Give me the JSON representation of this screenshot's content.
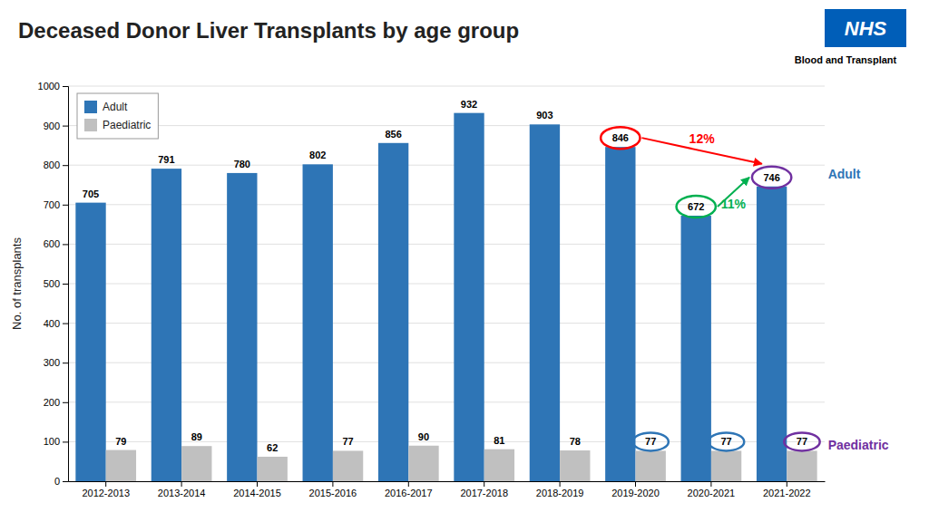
{
  "chart_data": {
    "type": "bar",
    "title": "Deceased Donor Liver Transplants by age group",
    "ylabel": "No. of transplants",
    "categories": [
      "2012-2013",
      "2013-2014",
      "2014-2015",
      "2015-2016",
      "2016-2017",
      "2017-2018",
      "2018-2019",
      "2019-2020",
      "2020-2021",
      "2021-2022"
    ],
    "series": [
      {
        "name": "Adult",
        "color": "#2E75B6",
        "values": [
          705,
          791,
          780,
          802,
          856,
          932,
          903,
          846,
          672,
          746
        ]
      },
      {
        "name": "Paediatric",
        "color": "#C0C0C0",
        "values": [
          79,
          89,
          62,
          77,
          90,
          81,
          78,
          77,
          77,
          77
        ]
      }
    ],
    "ylim": [
      0,
      1000
    ],
    "yticks": [
      0,
      100,
      200,
      300,
      400,
      500,
      600,
      700,
      800,
      900,
      1000
    ],
    "grid": true,
    "legend": "upper left",
    "data_labels": true,
    "highlights": [
      {
        "series": 0,
        "index": 7,
        "color": "#FF0000"
      },
      {
        "series": 0,
        "index": 8,
        "color": "#00B050"
      },
      {
        "series": 0,
        "index": 9,
        "color": "#7030A0"
      },
      {
        "series": 1,
        "index": 7,
        "color": "#2E75B6"
      },
      {
        "series": 1,
        "index": 8,
        "color": "#2E75B6"
      },
      {
        "series": 1,
        "index": 9,
        "color": "#7030A0"
      }
    ],
    "arrows": [
      {
        "from": 7,
        "to": 9,
        "color": "#FF0000",
        "text": "12%"
      },
      {
        "from": 8,
        "to": 9,
        "color": "#00B050",
        "text": "11%"
      }
    ],
    "end_labels": [
      {
        "series": 0,
        "color": "#2E75B6"
      },
      {
        "series": 1,
        "color": "#7030A0"
      }
    ],
    "logo": {
      "text": "NHS",
      "caption": "Blood and Transplant",
      "color": "#005EB8"
    }
  }
}
